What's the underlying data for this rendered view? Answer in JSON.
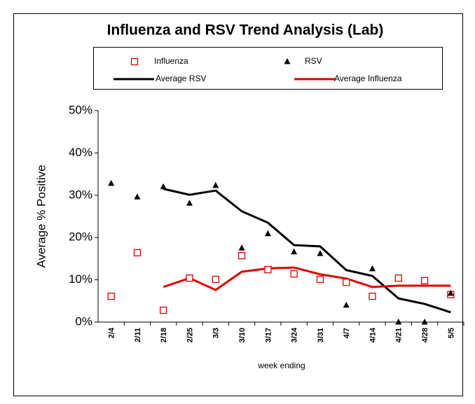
{
  "chart_data": {
    "type": "line",
    "title": "Influenza and RSV Trend Analysis (Lab)",
    "y_label": "Average % Positive",
    "x_label": "week ending",
    "categories": [
      "2/4",
      "2/11",
      "2/18",
      "2/25",
      "3/3",
      "3/10",
      "3/17",
      "3/24",
      "3/31",
      "4/7",
      "4/14",
      "4/21",
      "4/28",
      "5/5"
    ],
    "series": [
      {
        "name": "Influenza",
        "color": "#e00000",
        "marker": "square",
        "values": [
          6.1,
          16.4,
          2.8,
          10.4,
          10.1,
          15.7,
          12.4,
          11.4,
          10.1,
          9.4,
          6.1,
          10.4,
          9.8,
          6.5
        ]
      },
      {
        "name": "RSV",
        "color": "#000000",
        "marker": "triangle",
        "values": [
          32.8,
          29.6,
          32.0,
          28.1,
          32.3,
          17.5,
          20.9,
          16.6,
          16.2,
          4.0,
          12.6,
          0,
          0,
          6.8
        ]
      },
      {
        "name": "Average RSV",
        "color": "#000000",
        "marker": "line",
        "values": [
          null,
          null,
          31.5,
          30.1,
          31.1,
          26.2,
          23.5,
          18.2,
          17.9,
          12.3,
          10.9,
          5.6,
          4.3,
          2.3
        ]
      },
      {
        "name": "Average Influenza",
        "color": "#e00000",
        "marker": "line",
        "values": [
          null,
          null,
          8.3,
          10.4,
          7.6,
          11.9,
          12.7,
          12.9,
          11.3,
          10.3,
          8.3,
          8.6,
          8.6,
          8.6
        ]
      }
    ],
    "ylim": [
      0,
      50
    ],
    "yticks": [
      {
        "value": 0,
        "label": "0%"
      },
      {
        "value": 10,
        "label": "10%"
      },
      {
        "value": 20,
        "label": "20%"
      },
      {
        "value": 30,
        "label": "30%"
      },
      {
        "value": 40,
        "label": "40%"
      },
      {
        "value": 50,
        "label": "50%"
      }
    ],
    "grid": false
  }
}
